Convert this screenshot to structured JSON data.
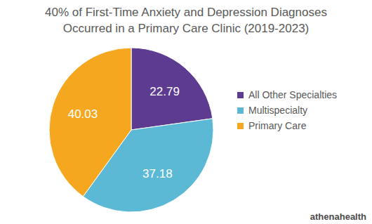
{
  "chart_data": {
    "type": "pie",
    "title": "40% of First-Time Anxiety and Depression Diagnoses Occurred in a Primary Care Clinic (2019-2023)",
    "categories": [
      "All Other Specialties",
      "Multispecialty",
      "Primary Care"
    ],
    "values": [
      22.79,
      37.18,
      40.03
    ],
    "colors": [
      "#5c3b91",
      "#5bb9d6",
      "#f5a81f"
    ],
    "data_labels": true,
    "legend": "right",
    "source": "athenahealth"
  }
}
